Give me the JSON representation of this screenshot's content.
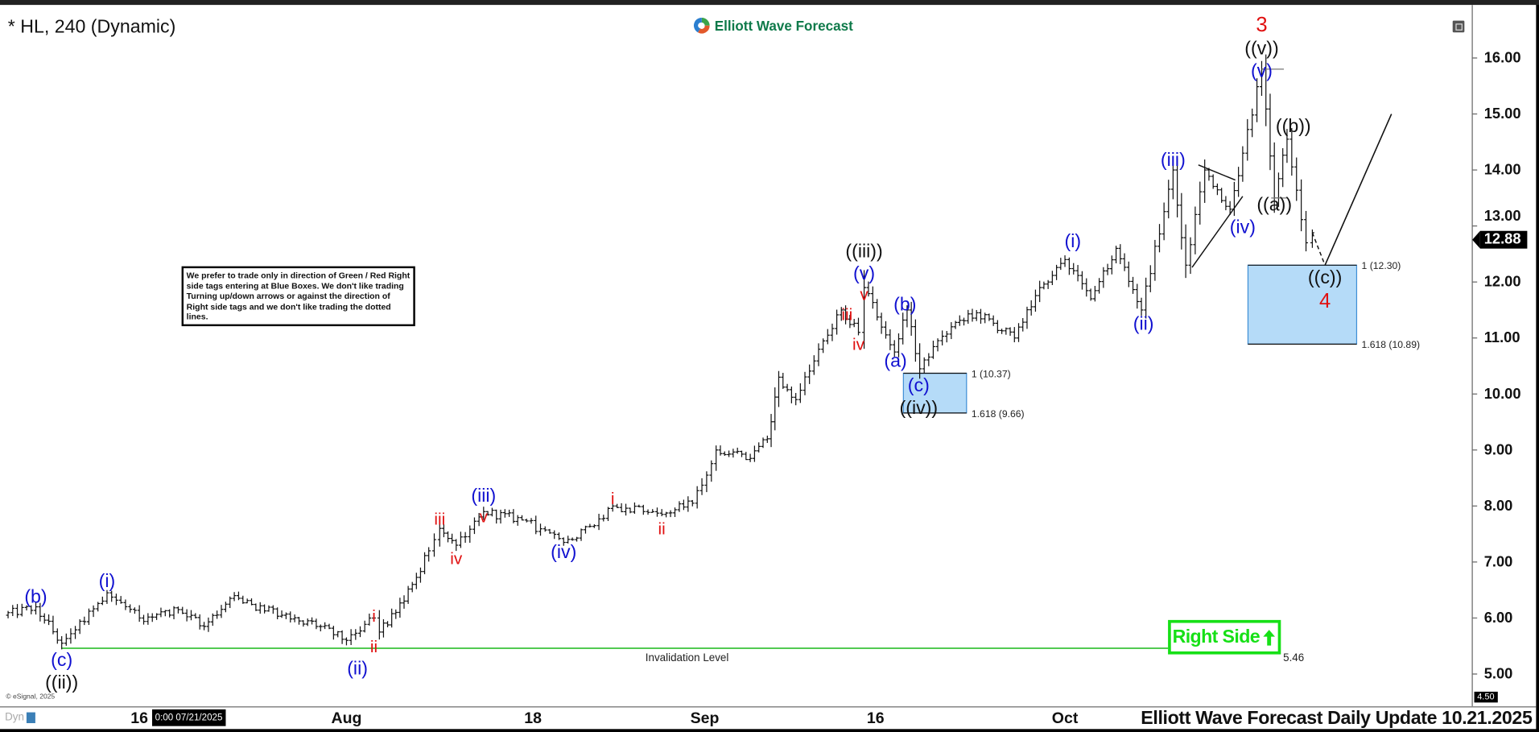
{
  "header": {
    "title": "* HL, 240 (Dynamic)",
    "logo_text": "Elliott Wave Forecast"
  },
  "notice": "We prefer to trade only in direction of Green / Red Right side tags entering at Blue Boxes. We don't like trading Turning up/down arrows or against the direction of Right side tags and we don't like trading the dotted lines.",
  "right_side_tag": {
    "label": "Right Side",
    "icon": "arrow-up-icon",
    "color": "#16e016"
  },
  "copyright": "© eSignal, 2025",
  "footer_title": "Elliott Wave Forecast Daily Update 10.21.2025",
  "crosshair_tooltip": "0:00 07/21/2025",
  "dyn_label": "Dyn",
  "colors": {
    "blue_wave": "#1010d0",
    "red_wave": "#e01010",
    "black_wave": "#111111",
    "box_fill": "#b5dbf8",
    "box_border": "#3f8fd6",
    "invalidation": "#39c239"
  },
  "chart_data": {
    "type": "ohlc",
    "symbol": "HL",
    "interval": "240",
    "last_price": "12.88",
    "ylim": [
      4.5,
      16.6
    ],
    "y_ticks": [
      "16.00",
      "15.00",
      "14.00",
      "13.00",
      "12.00",
      "11.00",
      "10.00",
      "9.00",
      "8.00",
      "7.00",
      "6.00",
      "5.00"
    ],
    "y_bottom_label": "4.50",
    "x_ticks": [
      {
        "label": "16",
        "date": "2025-07-16"
      },
      {
        "label": "Aug",
        "date": "2025-08-01"
      },
      {
        "label": "18",
        "date": "2025-08-18"
      },
      {
        "label": "Sep",
        "date": "2025-09-01"
      },
      {
        "label": "16",
        "date": "2025-09-16"
      },
      {
        "label": "Oct",
        "date": "2025-10-01"
      }
    ],
    "price_path": [
      [
        "2025-07-05T12:00",
        6.05
      ],
      [
        "2025-07-08",
        6.2
      ],
      [
        "2025-07-10",
        5.55
      ],
      [
        "2025-07-13T12:00",
        6.45
      ],
      [
        "2025-07-16",
        6.0
      ],
      [
        "2025-07-19",
        6.15
      ],
      [
        "2025-07-21",
        5.85
      ],
      [
        "2025-07-23",
        6.35
      ],
      [
        "2025-07-27",
        6.05
      ],
      [
        "2025-07-29",
        5.95
      ],
      [
        "2025-08-01",
        5.6
      ],
      [
        "2025-08-03T12:00",
        6.0
      ],
      [
        "2025-08-04",
        5.75
      ],
      [
        "2025-08-05T12:00",
        6.1
      ],
      [
        "2025-08-07",
        6.6
      ],
      [
        "2025-08-08T12:00",
        7.2
      ],
      [
        "2025-08-09T12:00",
        7.6
      ],
      [
        "2025-08-11",
        7.3
      ],
      [
        "2025-08-13T12:00",
        7.9
      ],
      [
        "2025-08-17",
        7.75
      ],
      [
        "2025-08-20T12:00",
        7.35
      ],
      [
        "2025-08-23",
        7.65
      ],
      [
        "2025-08-24T12:00",
        8.0
      ],
      [
        "2025-08-27",
        7.9
      ],
      [
        "2025-08-28T12:00",
        7.85
      ],
      [
        "2025-08-31",
        8.05
      ],
      [
        "2025-09-02",
        9.0
      ],
      [
        "2025-09-05",
        8.85
      ],
      [
        "2025-09-06T12:00",
        9.2
      ],
      [
        "2025-09-07T12:00",
        10.3
      ],
      [
        "2025-09-09",
        9.9
      ],
      [
        "2025-09-11",
        10.8
      ],
      [
        "2025-09-13",
        11.5
      ],
      [
        "2025-09-14T12:00",
        11.1
      ],
      [
        "2025-09-15",
        11.9
      ],
      [
        "2025-09-17T12:00",
        10.75
      ],
      [
        "2025-09-18T12:00",
        11.5
      ],
      [
        "2025-09-19T12:00",
        10.45
      ],
      [
        "2025-09-22",
        11.2
      ],
      [
        "2025-09-24",
        11.45
      ],
      [
        "2025-09-27",
        11.0
      ],
      [
        "2025-09-29",
        11.9
      ],
      [
        "2025-10-01",
        12.4
      ],
      [
        "2025-10-03",
        11.7
      ],
      [
        "2025-10-05",
        12.6
      ],
      [
        "2025-10-07",
        11.5
      ],
      [
        "2025-10-09T12:00",
        14.0
      ],
      [
        "2025-10-10T12:00",
        12.3
      ],
      [
        "2025-10-12",
        14.0
      ],
      [
        "2025-10-14",
        13.3
      ],
      [
        "2025-10-15",
        14.3
      ],
      [
        "2025-10-16T12:00",
        15.8
      ],
      [
        "2025-10-17T12:00",
        13.5
      ],
      [
        "2025-10-18T12:00",
        14.55
      ],
      [
        "2025-10-20",
        12.7
      ],
      [
        "2025-10-20T12:00",
        12.88
      ]
    ],
    "wave_labels": [
      {
        "text": "(b)",
        "color": "blue",
        "date": "2025-07-08",
        "price": 6.39
      },
      {
        "text": "(c)",
        "color": "blue",
        "date": "2025-07-10",
        "price": 5.26
      },
      {
        "text": "((ii))",
        "color": "black",
        "date": "2025-07-10",
        "price": 4.95
      },
      {
        "text": "(i)",
        "color": "blue",
        "date": "2025-07-13T12:00",
        "price": 6.67
      },
      {
        "text": "(ii)",
        "color": "blue",
        "date": "2025-08-02",
        "price": 5.39
      },
      {
        "text": "i",
        "color": "red",
        "date": "2025-08-03T12:00",
        "price": 6.04
      },
      {
        "text": "ii",
        "color": "red",
        "date": "2025-08-03T12:00",
        "price": 5.49
      },
      {
        "text": "iii",
        "color": "red",
        "date": "2025-08-09T12:00",
        "price": 7.77
      },
      {
        "text": "iv",
        "color": "red",
        "date": "2025-08-11",
        "price": 7.07
      },
      {
        "text": "(iii)",
        "color": "blue",
        "date": "2025-08-13T12:00",
        "price": 8.19
      },
      {
        "text": "v",
        "color": "red",
        "date": "2025-08-13T12:00",
        "price": 7.96
      },
      {
        "text": "(iv)",
        "color": "blue",
        "date": "2025-08-20T12:00",
        "price": 7.19
      },
      {
        "text": "i",
        "color": "red",
        "date": "2025-08-24T12:00",
        "price": 8.14
      },
      {
        "text": "ii",
        "color": "red",
        "date": "2025-08-28T12:00",
        "price": 7.6
      },
      {
        "text": "iii",
        "color": "red",
        "date": "2025-09-13T12:00",
        "price": 11.63
      },
      {
        "text": "iv",
        "color": "red",
        "date": "2025-09-14T12:00",
        "price": 10.89
      },
      {
        "text": "((iii))",
        "color": "black",
        "date": "2025-09-15",
        "price": 12.56
      },
      {
        "text": "(v)",
        "color": "blue",
        "date": "2025-09-15",
        "price": 12.26
      },
      {
        "text": "v",
        "color": "red",
        "date": "2025-09-15",
        "price": 12.02
      },
      {
        "text": "(b)",
        "color": "blue",
        "date": "2025-09-18T08:00",
        "price": 11.61
      },
      {
        "text": "(a)",
        "color": "blue",
        "date": "2025-09-17T14:00",
        "price": 10.6
      },
      {
        "text": "(c)",
        "color": "blue",
        "date": "2025-09-19T10:00",
        "price": 10.16
      },
      {
        "text": "((iv))",
        "color": "black",
        "date": "2025-09-19T10:00",
        "price": 9.86
      },
      {
        "text": "(i)",
        "color": "blue",
        "date": "2025-10-01T14:00",
        "price": 12.74
      },
      {
        "text": "(ii)",
        "color": "blue",
        "date": "2025-10-07T04:00",
        "price": 11.26
      },
      {
        "text": "(iii)",
        "color": "blue",
        "date": "2025-10-09T12:00",
        "price": 14.19
      },
      {
        "text": "(iv)",
        "color": "blue",
        "date": "2025-10-15",
        "price": 13.07
      },
      {
        "text": "3",
        "color": "red",
        "date": "2025-10-16T12:00",
        "price": 16.6
      },
      {
        "text": "((v))",
        "color": "black",
        "date": "2025-10-16T12:00",
        "price": 16.28
      },
      {
        "text": "(v)",
        "color": "blue",
        "date": "2025-10-16T12:00",
        "price": 15.96
      },
      {
        "text": "((b))",
        "color": "black",
        "date": "2025-10-19",
        "price": 14.79
      },
      {
        "text": "((a))",
        "color": "black",
        "date": "2025-10-17T12:00",
        "price": 13.39
      },
      {
        "text": "((c))",
        "color": "black",
        "date": "2025-10-21T12:00",
        "price": 12.09
      },
      {
        "text": "4",
        "color": "red",
        "date": "2025-10-21T12:00",
        "price": 11.79
      }
    ],
    "blue_boxes": [
      {
        "from": "2025-09-18T05:00",
        "to": "2025-09-23T05:00",
        "top": 10.37,
        "bottom": 9.66,
        "top_label": "1 (10.37)",
        "bottom_label": "1.618 (9.66)"
      },
      {
        "from": "2025-10-15T10:00",
        "to": "2025-10-24",
        "top": 12.3,
        "bottom": 10.89,
        "top_label": "1 (12.30)",
        "bottom_label": "1.618 (10.89)"
      }
    ],
    "triangle_lines": [
      [
        [
          "2025-10-11T12:00",
          14.09
        ],
        [
          "2025-10-14T10:00",
          13.82
        ]
      ],
      [
        [
          "2025-10-11",
          12.26
        ],
        [
          "2025-10-15",
          13.53
        ]
      ]
    ],
    "projection": {
      "dashed": [
        [
          "2025-10-20T12:00",
          12.88
        ],
        [
          "2025-10-21T12:00",
          12.3
        ]
      ],
      "solid": [
        [
          "2025-10-21T12:00",
          12.3
        ],
        [
          "2025-10-26T18:00",
          15.0
        ]
      ]
    },
    "invalidation": {
      "label": "Invalidation Level",
      "price": 5.46,
      "price_label": "5.46",
      "from": "2025-07-10",
      "to": "2025-10-17T12:00"
    }
  }
}
